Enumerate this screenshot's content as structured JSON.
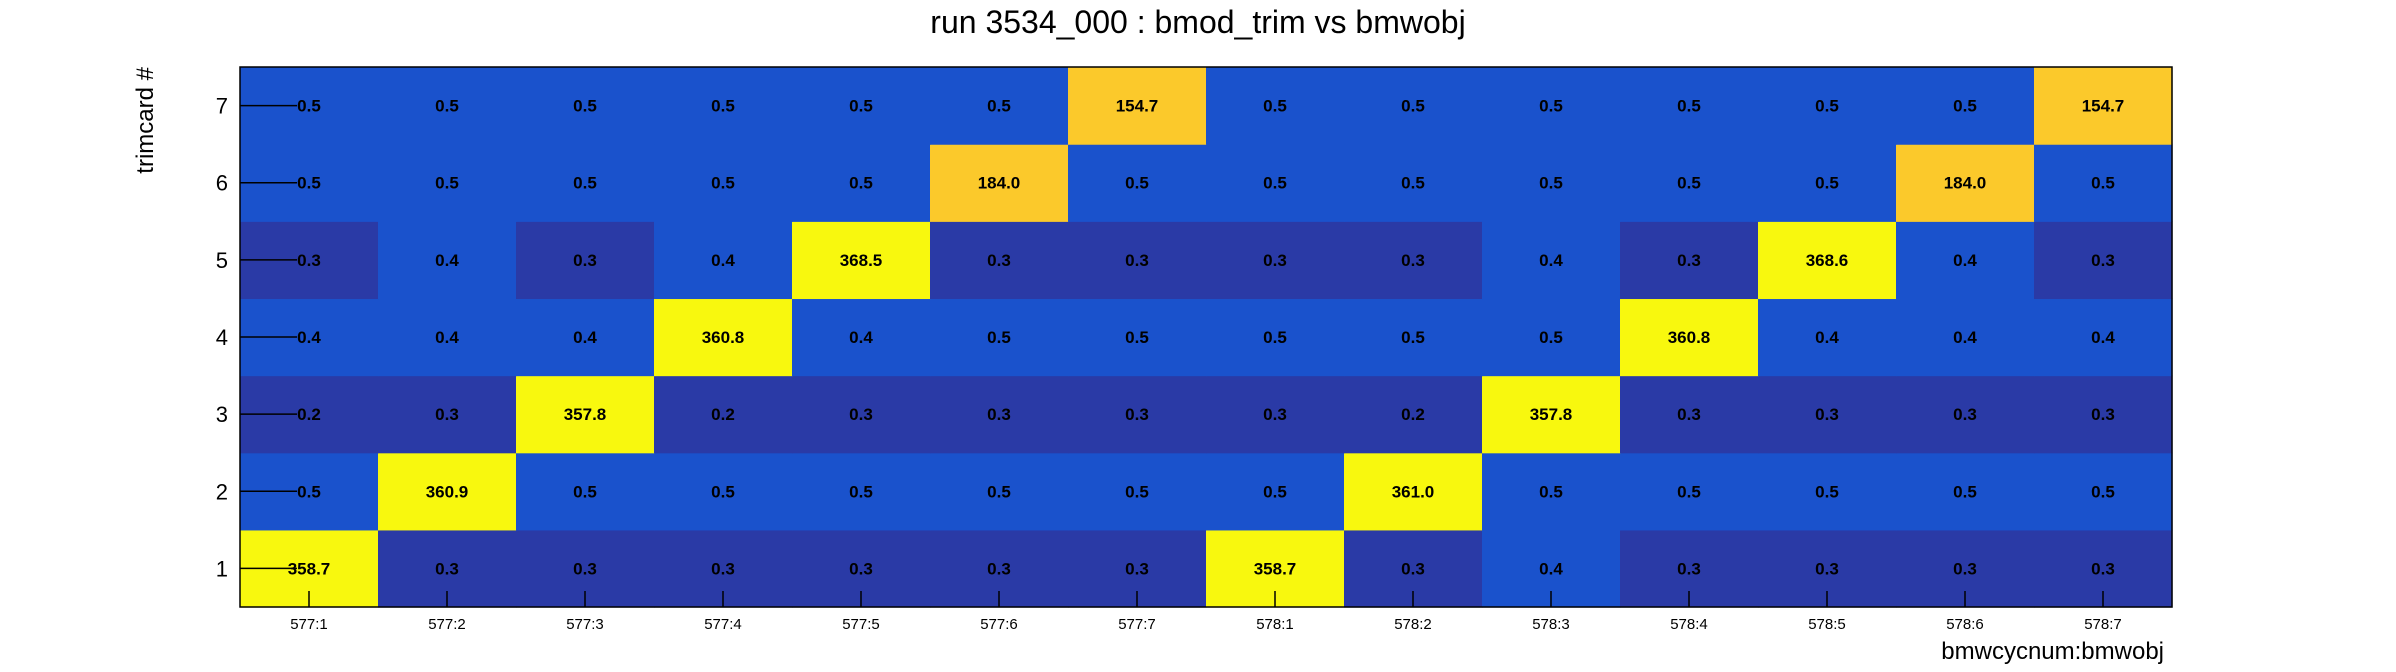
{
  "chart_data": {
    "type": "heatmap",
    "title": "run 3534_000 : bmod_trim vs bmwobj",
    "xlabel": "bmwcycnum:bmwobj",
    "ylabel": "trimcard #",
    "x_categories": [
      "577:1",
      "577:2",
      "577:3",
      "577:4",
      "577:5",
      "577:6",
      "577:7",
      "578:1",
      "578:2",
      "578:3",
      "578:4",
      "578:5",
      "578:6",
      "578:7"
    ],
    "y_categories": [
      "1",
      "2",
      "3",
      "4",
      "5",
      "6",
      "7"
    ],
    "values": [
      [
        358.7,
        0.3,
        0.3,
        0.3,
        0.3,
        0.3,
        0.3,
        358.7,
        0.3,
        0.4,
        0.3,
        0.3,
        0.3,
        0.3
      ],
      [
        0.5,
        360.9,
        0.5,
        0.5,
        0.5,
        0.5,
        0.5,
        0.5,
        361.0,
        0.5,
        0.5,
        0.5,
        0.5,
        0.5
      ],
      [
        0.2,
        0.3,
        357.8,
        0.2,
        0.3,
        0.3,
        0.3,
        0.3,
        0.2,
        357.8,
        0.3,
        0.3,
        0.3,
        0.3
      ],
      [
        0.4,
        0.4,
        0.4,
        360.8,
        0.4,
        0.5,
        0.5,
        0.5,
        0.5,
        0.5,
        360.8,
        0.4,
        0.4,
        0.4
      ],
      [
        0.3,
        0.4,
        0.3,
        0.4,
        368.5,
        0.3,
        0.3,
        0.3,
        0.3,
        0.4,
        0.3,
        368.6,
        0.4,
        0.3
      ],
      [
        0.5,
        0.5,
        0.5,
        0.5,
        0.5,
        184.0,
        0.5,
        0.5,
        0.5,
        0.5,
        0.5,
        0.5,
        184.0,
        0.5
      ],
      [
        0.5,
        0.5,
        0.5,
        0.5,
        0.5,
        0.5,
        154.7,
        0.5,
        0.5,
        0.5,
        0.5,
        0.5,
        0.5,
        154.7
      ]
    ],
    "colors": {
      "low_dark": "#2a3aa6",
      "low_mid": "#1a52cc",
      "peak_high": "#f8f80e",
      "peak_mid": "#fbc92b"
    }
  }
}
